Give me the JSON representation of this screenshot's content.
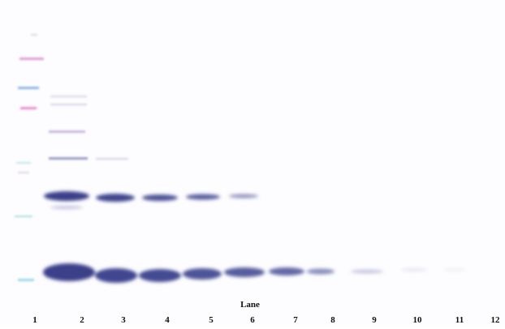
{
  "xlabel": "Lane",
  "lanes": [
    "1",
    "2",
    "3",
    "4",
    "5",
    "6",
    "7",
    "8",
    "9",
    "10",
    "11",
    "12"
  ]
}
